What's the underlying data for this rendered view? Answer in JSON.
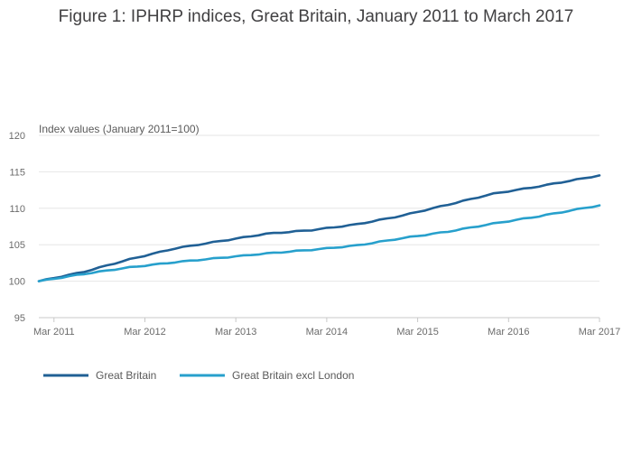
{
  "chart_data": {
    "type": "line",
    "title": "Figure 1: IPHRP indices, Great Britain, January 2011 to March 2017",
    "ylabel": "Index values (January 2011=100)",
    "xlabel": "",
    "ylim": [
      95,
      120
    ],
    "yticks": [
      "95",
      "100",
      "105",
      "110",
      "115",
      "120"
    ],
    "xticks": [
      {
        "label": "Mar 2011",
        "month_index": 2
      },
      {
        "label": "Mar 2012",
        "month_index": 14
      },
      {
        "label": "Mar 2013",
        "month_index": 26
      },
      {
        "label": "Mar 2014",
        "month_index": 38
      },
      {
        "label": "Mar 2015",
        "month_index": 50
      },
      {
        "label": "Mar 2016",
        "month_index": 62
      },
      {
        "label": "Mar 2017",
        "month_index": 74
      }
    ],
    "x_start": "Jan 2011",
    "x_end": "Mar 2017",
    "grid": true,
    "legend_position": "bottom-left",
    "series": [
      {
        "name": "Great Britain",
        "color": "#206095",
        "anchors": [
          [
            0,
            100
          ],
          [
            6,
            101.3
          ],
          [
            12,
            103.0
          ],
          [
            18,
            104.5
          ],
          [
            24,
            105.5
          ],
          [
            30,
            106.5
          ],
          [
            36,
            107.0
          ],
          [
            42,
            107.8
          ],
          [
            48,
            109.0
          ],
          [
            54,
            110.5
          ],
          [
            60,
            112.0
          ],
          [
            66,
            113.0
          ],
          [
            74,
            114.5
          ]
        ]
      },
      {
        "name": "Great Britain excl London",
        "color": "#27a0cc",
        "anchors": [
          [
            0,
            100
          ],
          [
            6,
            101.0
          ],
          [
            12,
            101.9
          ],
          [
            18,
            102.6
          ],
          [
            24,
            103.2
          ],
          [
            30,
            103.8
          ],
          [
            36,
            104.3
          ],
          [
            42,
            104.9
          ],
          [
            48,
            105.9
          ],
          [
            54,
            106.8
          ],
          [
            60,
            107.9
          ],
          [
            66,
            108.9
          ],
          [
            74,
            110.4
          ]
        ]
      }
    ]
  }
}
